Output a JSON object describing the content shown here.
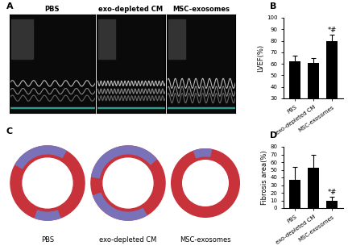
{
  "panels": [
    {
      "panel": "A",
      "type": "image",
      "captions": [
        "PBS",
        "exo-depleted CM",
        "MSC-exosomes"
      ]
    },
    {
      "panel": "C",
      "type": "image",
      "captions": [
        "PBS",
        "exo-depleted CM",
        "MSC-exosomes"
      ]
    }
  ],
  "chart_data": [
    {
      "panel": "B",
      "type": "bar",
      "categories": [
        "PBS",
        "exo-depleted CM",
        "MSC-exosomes"
      ],
      "values": [
        62,
        61,
        80
      ],
      "errors": [
        5,
        4,
        5
      ],
      "color": "#000000",
      "y_label": "LVEF(%)",
      "ylim": [
        30,
        100
      ],
      "yticks": [
        30,
        40,
        50,
        60,
        70,
        80,
        90,
        100
      ],
      "annotations": [
        {
          "category": "MSC-exosomes",
          "text": "*#"
        }
      ]
    },
    {
      "panel": "D",
      "type": "bar",
      "categories": [
        "PBS",
        "exo-depleted CM",
        "MSC-exosomes"
      ],
      "values": [
        37,
        53,
        10
      ],
      "errors": [
        17,
        17,
        5
      ],
      "color": "#000000",
      "y_label": "Fibrosis area(%)",
      "ylim": [
        0,
        80
      ],
      "yticks": [
        0,
        10,
        20,
        30,
        40,
        50,
        60,
        70,
        80
      ],
      "annotations": [
        {
          "category": "MSC-exosomes",
          "text": "*#"
        }
      ]
    }
  ]
}
